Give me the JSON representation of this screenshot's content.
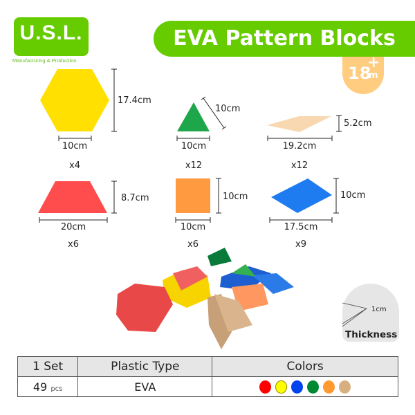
{
  "brand": {
    "logo": "U.S.L.",
    "tagline": "Manufacturing & Production"
  },
  "title": "EVA Pattern Blocks",
  "age": {
    "number": "18",
    "plus": "+",
    "unit": "m"
  },
  "shapes": [
    {
      "shape": "hexagon",
      "color": "#ffe000",
      "height": "17.4cm",
      "width": "10cm",
      "count": "x4"
    },
    {
      "shape": "triangle",
      "color": "#1ea64a",
      "side": "10cm",
      "width": "10cm",
      "count": "x12"
    },
    {
      "shape": "thin-rhombus",
      "color": "#f8d8b0",
      "height": "5.2cm",
      "width": "19.2cm",
      "count": "x12"
    },
    {
      "shape": "trapezoid",
      "color": "#ff4d4d",
      "height": "8.7cm",
      "width": "20cm",
      "count": "x6"
    },
    {
      "shape": "square",
      "color": "#ff9a40",
      "height": "10cm",
      "width": "10cm",
      "count": "x6"
    },
    {
      "shape": "rhombus",
      "color": "#1e7cf0",
      "height": "10cm",
      "width": "17.5cm",
      "count": "x9"
    }
  ],
  "thickness": {
    "value": "1cm",
    "label": "Thickness"
  },
  "table": {
    "headers": [
      "1 Set",
      "Plastic Type",
      "Colors"
    ],
    "quantity": "49",
    "quantity_unit": "pcs",
    "plastic": "EVA",
    "colors": [
      "#ff0000",
      "#ffff00",
      "#0044ee",
      "#008833",
      "#ff9a30",
      "#d8b080"
    ]
  }
}
